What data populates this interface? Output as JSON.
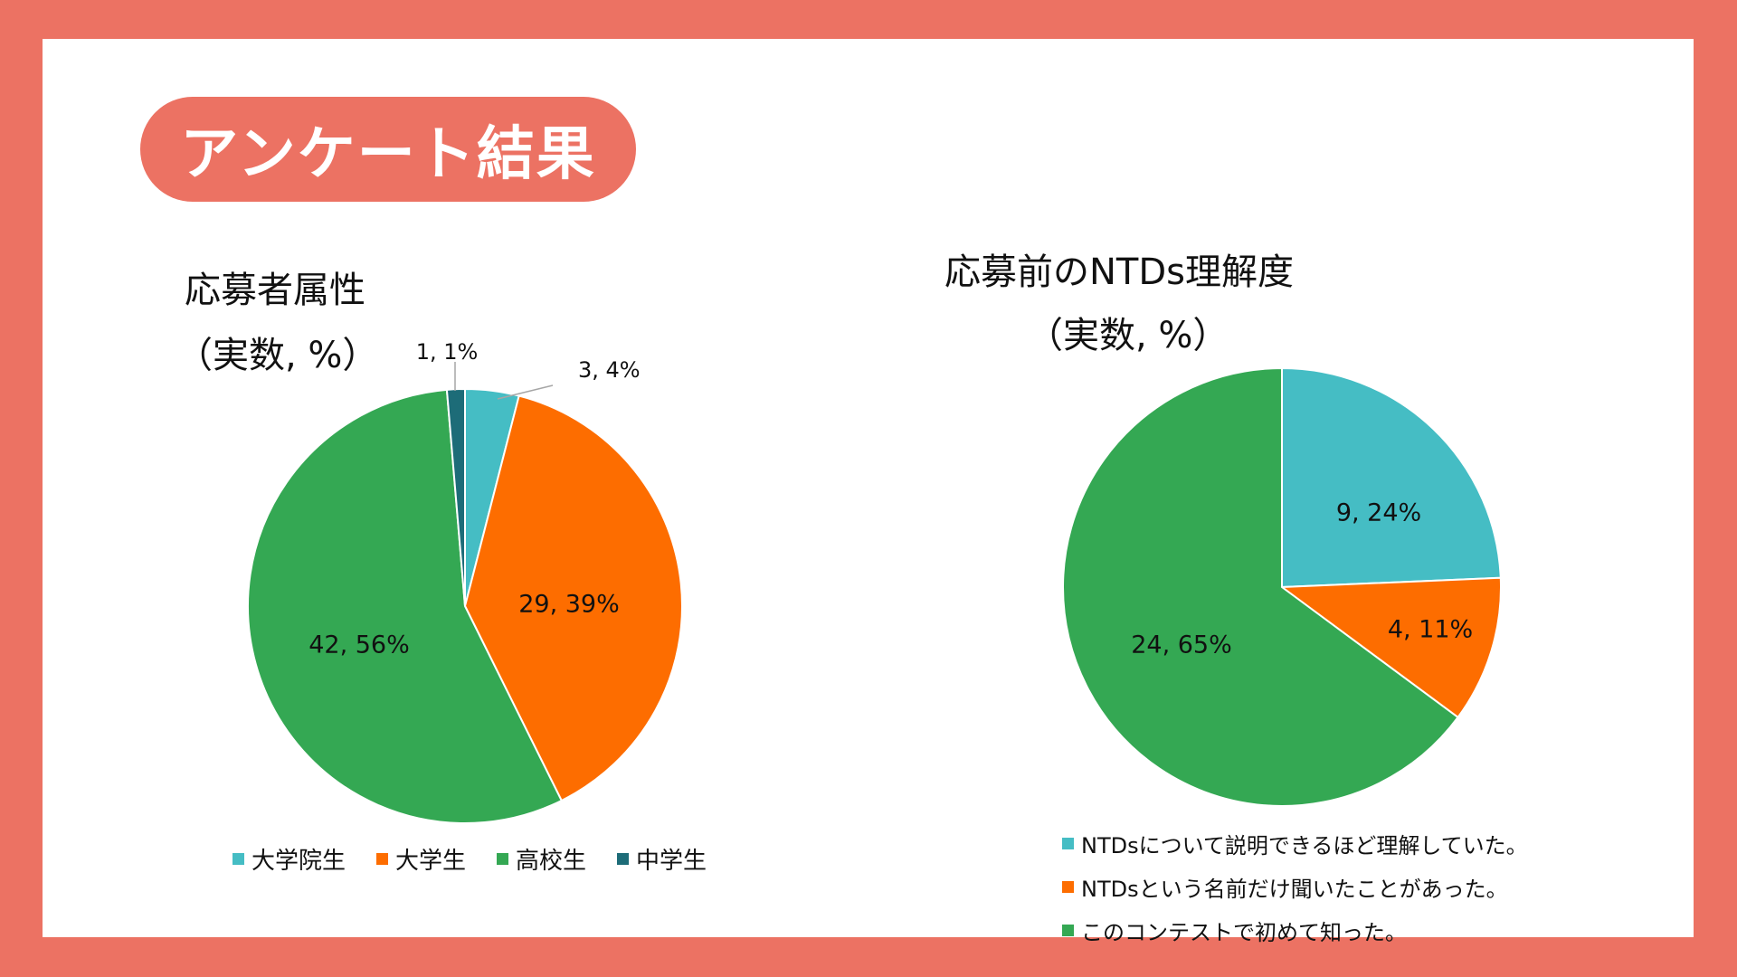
{
  "header": {
    "title": "アンケート結果"
  },
  "colors": {
    "background": "#ec7263",
    "teal": "#45bdc4",
    "orange": "#fd6d00",
    "green": "#34a853",
    "darkteal": "#1d6c78"
  },
  "chart_data": [
    {
      "type": "pie",
      "title": "応募者属性",
      "subtitle": "（実数, %）",
      "slices": [
        {
          "name": "大学院生",
          "value": 3,
          "percent": 4,
          "label": "3, 4%",
          "color": "#45bdc4"
        },
        {
          "name": "大学生",
          "value": 29,
          "percent": 39,
          "label": "29, 39%",
          "color": "#fd6d00"
        },
        {
          "name": "高校生",
          "value": 42,
          "percent": 56,
          "label": "42, 56%",
          "color": "#34a853"
        },
        {
          "name": "中学生",
          "value": 1,
          "percent": 1,
          "label": "1, 1%",
          "color": "#1d6c78"
        }
      ],
      "legend_position": "bottom"
    },
    {
      "type": "pie",
      "title": "応募前のNTDs理解度",
      "subtitle": "（実数, %）",
      "slices": [
        {
          "name": "NTDsについて説明できるほど理解していた。",
          "value": 9,
          "percent": 24,
          "label": "9, 24%",
          "color": "#45bdc4"
        },
        {
          "name": "NTDsという名前だけ聞いたことがあった。",
          "value": 4,
          "percent": 11,
          "label": "4, 11%",
          "color": "#fd6d00"
        },
        {
          "name": "このコンテストで初めて知った。",
          "value": 24,
          "percent": 65,
          "label": "24, 65%",
          "color": "#34a853"
        }
      ],
      "legend_position": "bottom"
    }
  ]
}
